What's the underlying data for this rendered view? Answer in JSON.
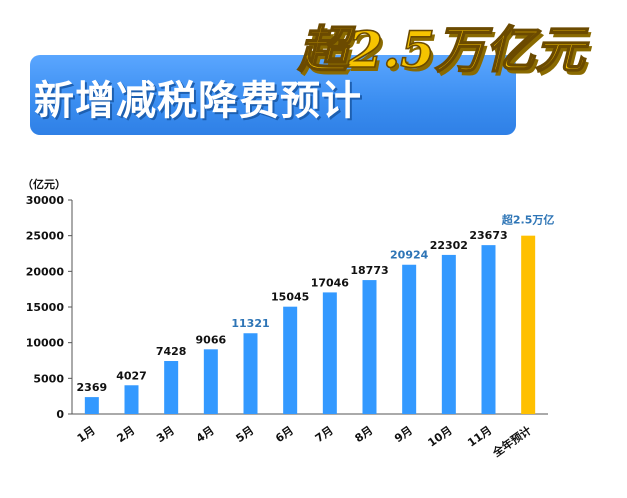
{
  "banner": {
    "title": "新增减税降费预计",
    "headline": "超2.5万亿元"
  },
  "chart_data": {
    "type": "bar",
    "unit_label": "（亿元）",
    "categories": [
      "1月",
      "2月",
      "3月",
      "4月",
      "5月",
      "6月",
      "7月",
      "8月",
      "9月",
      "10月",
      "11月",
      "全年预计"
    ],
    "values": [
      2369,
      4027,
      7428,
      9066,
      11321,
      15045,
      17046,
      18773,
      20924,
      22302,
      23673,
      25000
    ],
    "data_labels": [
      "2369",
      "4027",
      "7428",
      "9066",
      "11321",
      "15045",
      "17046",
      "18773",
      "20924",
      "22302",
      "23673",
      "超2.5万亿"
    ],
    "y_ticks": [
      0,
      5000,
      10000,
      15000,
      20000,
      25000,
      30000
    ],
    "ylim": [
      0,
      30000
    ],
    "grid": false,
    "colors": {
      "bar": "#3399ff",
      "highlight_bar": "#ffc000",
      "label_default": "#111111",
      "label_highlight": "#2e75b6"
    },
    "highlight_bar_index": 11,
    "highlighted_label_indices": [
      4,
      8,
      11
    ]
  }
}
